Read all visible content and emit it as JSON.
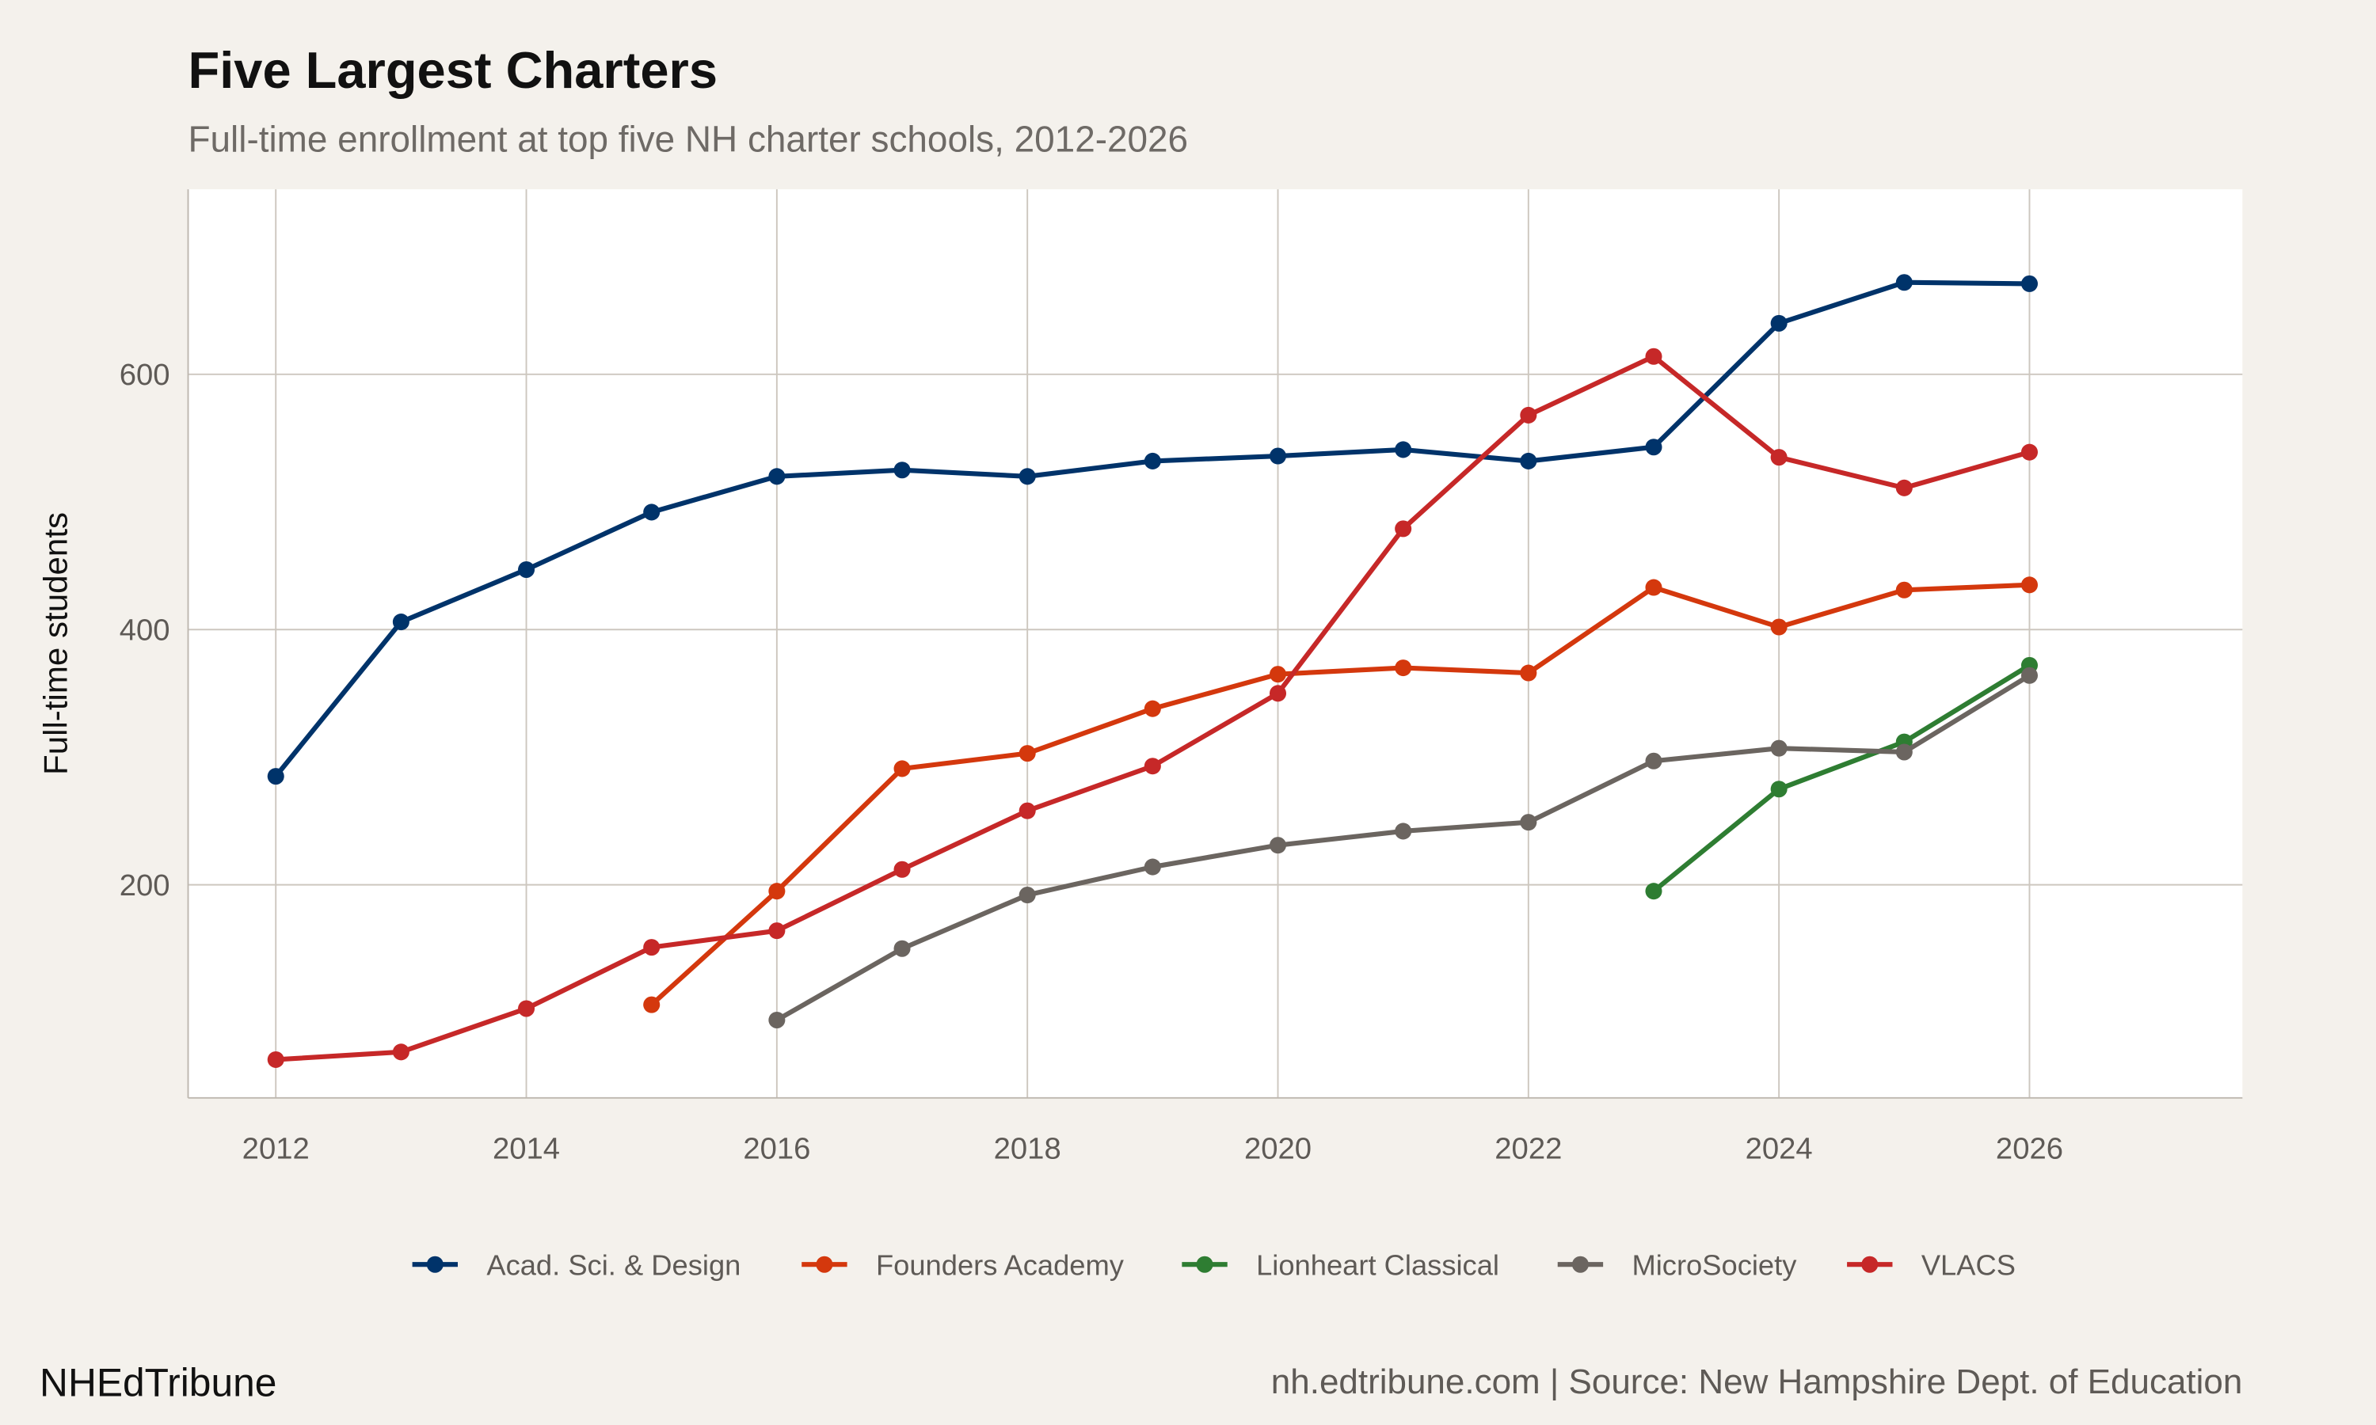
{
  "chart_data": {
    "type": "line",
    "title": "Five Largest Charters",
    "subtitle": "Full-time enrollment at top five NH charter schools, 2012-2026",
    "xlabel": "",
    "ylabel": "Full-time students",
    "xlim": [
      2011.3,
      2027.7
    ],
    "ylim": [
      33,
      745
    ],
    "x_ticks": [
      2012,
      2014,
      2016,
      2018,
      2020,
      2022,
      2024,
      2026
    ],
    "y_ticks": [
      200,
      400,
      600
    ],
    "grid": true,
    "legend_position": "bottom",
    "series": [
      {
        "name": "Acad. Sci. & Design",
        "color": "#00336a",
        "x": [
          2012,
          2013,
          2014,
          2015,
          2016,
          2017,
          2018,
          2019,
          2020,
          2021,
          2022,
          2023,
          2024,
          2025,
          2026
        ],
        "y": [
          285,
          406,
          447,
          492,
          520,
          525,
          520,
          532,
          536,
          541,
          532,
          543,
          640,
          672,
          671
        ]
      },
      {
        "name": "Founders Academy",
        "color": "#d4380d",
        "x": [
          2015,
          2016,
          2017,
          2018,
          2019,
          2020,
          2021,
          2022,
          2023,
          2024,
          2025,
          2026
        ],
        "y": [
          106,
          195,
          291,
          303,
          338,
          365,
          370,
          366,
          433,
          402,
          431,
          435
        ]
      },
      {
        "name": "Lionheart Classical",
        "color": "#2e7d32",
        "x": [
          2023,
          2024,
          2025,
          2026
        ],
        "y": [
          195,
          275,
          312,
          372
        ]
      },
      {
        "name": "MicroSociety",
        "color": "#6b6560",
        "x": [
          2016,
          2017,
          2018,
          2019,
          2020,
          2021,
          2022,
          2023,
          2024,
          2025,
          2026
        ],
        "y": [
          94,
          150,
          192,
          214,
          231,
          242,
          249,
          297,
          307,
          304,
          364
        ]
      },
      {
        "name": "VLACS",
        "color": "#c62828",
        "x": [
          2012,
          2013,
          2014,
          2015,
          2016,
          2017,
          2018,
          2019,
          2020,
          2021,
          2022,
          2023,
          2024,
          2025,
          2026
        ],
        "y": [
          63,
          69,
          103,
          151,
          164,
          212,
          258,
          293,
          350,
          479,
          568,
          614,
          535,
          511,
          539
        ]
      }
    ]
  },
  "footer": {
    "brand": "NHEdTribune",
    "source": "nh.edtribune.com | Source: New Hampshire Dept. of Education"
  },
  "colors": {
    "background": "#f4f1ec",
    "panel": "#ffffff",
    "grid": "#cdc7bf"
  }
}
